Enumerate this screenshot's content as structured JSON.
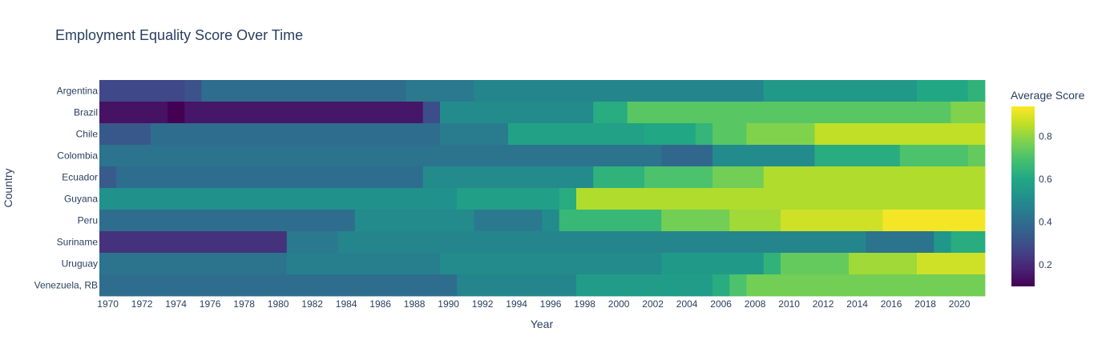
{
  "chart_data": {
    "type": "heatmap",
    "title": "Employment Equality Score Over Time",
    "xlabel": "Year",
    "ylabel": "Country",
    "colorbar_title": "Average Score",
    "colorscale": "viridis",
    "zrange": [
      0.1,
      0.94
    ],
    "colorbar_ticks": [
      0.2,
      0.4,
      0.6,
      0.8
    ],
    "x_range": [
      1969.5,
      2021.5
    ],
    "x_ticks": [
      1970,
      1972,
      1974,
      1976,
      1978,
      1980,
      1982,
      1984,
      1986,
      1988,
      1990,
      1992,
      1994,
      1996,
      1998,
      2000,
      2002,
      2004,
      2006,
      2008,
      2010,
      2012,
      2014,
      2016,
      2018,
      2020
    ],
    "countries": [
      "Argentina",
      "Brazil",
      "Chile",
      "Colombia",
      "Ecuador",
      "Guyana",
      "Peru",
      "Suriname",
      "Uruguay",
      "Venezuela, RB"
    ],
    "rows": [
      {
        "country": "Argentina",
        "segments": [
          [
            1970,
            1974,
            0.28
          ],
          [
            1975,
            1975,
            0.31
          ],
          [
            1976,
            1987,
            0.4
          ],
          [
            1988,
            1991,
            0.44
          ],
          [
            1992,
            2008,
            0.48
          ],
          [
            2009,
            2017,
            0.55
          ],
          [
            2018,
            2020,
            0.6
          ],
          [
            2021,
            2021,
            0.64
          ]
        ]
      },
      {
        "country": "Brazil",
        "segments": [
          [
            1970,
            1973,
            0.14
          ],
          [
            1974,
            1974,
            0.1
          ],
          [
            1975,
            1988,
            0.15
          ],
          [
            1989,
            1989,
            0.3
          ],
          [
            1990,
            1998,
            0.5
          ],
          [
            1999,
            2000,
            0.62
          ],
          [
            2001,
            2019,
            0.72
          ],
          [
            2020,
            2021,
            0.78
          ]
        ]
      },
      {
        "country": "Chile",
        "segments": [
          [
            1970,
            1972,
            0.33
          ],
          [
            1973,
            1989,
            0.4
          ],
          [
            1990,
            1993,
            0.45
          ],
          [
            1994,
            2001,
            0.58
          ],
          [
            2002,
            2004,
            0.6
          ],
          [
            2005,
            2005,
            0.65
          ],
          [
            2006,
            2007,
            0.72
          ],
          [
            2008,
            2011,
            0.78
          ],
          [
            2012,
            2021,
            0.86
          ]
        ]
      },
      {
        "country": "Colombia",
        "segments": [
          [
            1970,
            2002,
            0.42
          ],
          [
            2003,
            2005,
            0.38
          ],
          [
            2006,
            2011,
            0.5
          ],
          [
            2012,
            2016,
            0.62
          ],
          [
            2017,
            2020,
            0.7
          ],
          [
            2021,
            2021,
            0.74
          ]
        ]
      },
      {
        "country": "Ecuador",
        "segments": [
          [
            1970,
            1970,
            0.34
          ],
          [
            1971,
            1988,
            0.4
          ],
          [
            1989,
            1998,
            0.5
          ],
          [
            1999,
            2001,
            0.64
          ],
          [
            2002,
            2005,
            0.7
          ],
          [
            2006,
            2008,
            0.76
          ],
          [
            2009,
            2021,
            0.84
          ]
        ]
      },
      {
        "country": "Guyana",
        "segments": [
          [
            1970,
            1990,
            0.52
          ],
          [
            1991,
            1996,
            0.57
          ],
          [
            1997,
            1997,
            0.62
          ],
          [
            1998,
            2021,
            0.84
          ]
        ]
      },
      {
        "country": "Peru",
        "segments": [
          [
            1970,
            1984,
            0.4
          ],
          [
            1985,
            1991,
            0.5
          ],
          [
            1992,
            1995,
            0.44
          ],
          [
            1996,
            1996,
            0.5
          ],
          [
            1997,
            2002,
            0.66
          ],
          [
            2003,
            2006,
            0.76
          ],
          [
            2007,
            2009,
            0.82
          ],
          [
            2010,
            2015,
            0.88
          ],
          [
            2016,
            2021,
            0.93
          ]
        ]
      },
      {
        "country": "Suriname",
        "segments": [
          [
            1970,
            1980,
            0.22
          ],
          [
            1981,
            1983,
            0.44
          ],
          [
            1984,
            2014,
            0.48
          ],
          [
            2015,
            2018,
            0.42
          ],
          [
            2019,
            2019,
            0.54
          ],
          [
            2020,
            2021,
            0.62
          ]
        ]
      },
      {
        "country": "Uruguay",
        "segments": [
          [
            1970,
            1980,
            0.42
          ],
          [
            1981,
            1989,
            0.46
          ],
          [
            1990,
            2002,
            0.5
          ],
          [
            2003,
            2008,
            0.55
          ],
          [
            2009,
            2009,
            0.64
          ],
          [
            2010,
            2013,
            0.74
          ],
          [
            2014,
            2017,
            0.82
          ],
          [
            2018,
            2021,
            0.88
          ]
        ]
      },
      {
        "country": "Venezuela, RB",
        "segments": [
          [
            1970,
            1990,
            0.4
          ],
          [
            1991,
            1997,
            0.48
          ],
          [
            1998,
            2005,
            0.56
          ],
          [
            2006,
            2006,
            0.62
          ],
          [
            2007,
            2007,
            0.7
          ],
          [
            2008,
            2021,
            0.76
          ]
        ]
      }
    ]
  }
}
